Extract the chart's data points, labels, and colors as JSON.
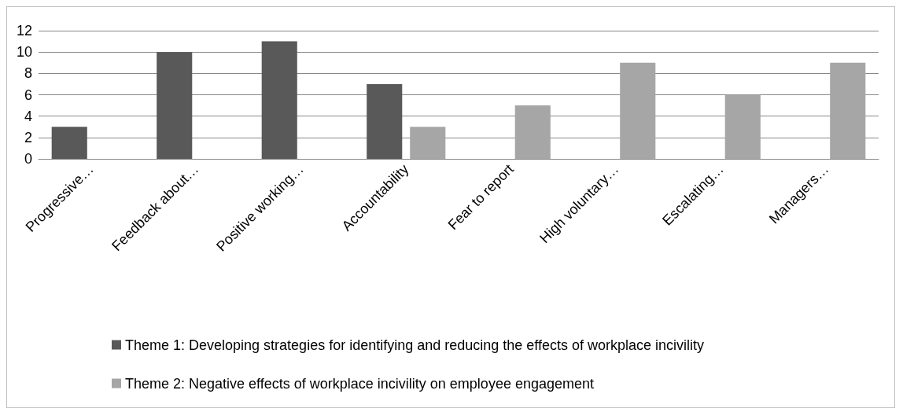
{
  "chart_data": {
    "type": "bar",
    "categories": [
      "Progressive…",
      "Feedback about…",
      "Positive working…",
      "Accountability",
      "Fear to report",
      "High voluntary…",
      "Escalating…",
      "Managers…"
    ],
    "series": [
      {
        "name": "Theme 1: Developing strategies for identifying and reducing the effects of workplace incivility",
        "color": "#595959",
        "values": [
          3,
          10,
          11,
          7,
          null,
          null,
          null,
          null
        ]
      },
      {
        "name": "Theme 2: Negative effects of workplace incivility on employee engagement",
        "color": "#a6a6a6",
        "values": [
          null,
          null,
          null,
          3,
          5,
          9,
          6,
          9
        ]
      }
    ],
    "ylim": [
      0,
      12
    ],
    "yticks": [
      0,
      2,
      4,
      6,
      8,
      10,
      12
    ],
    "grid": "y",
    "legend": "bottom"
  }
}
